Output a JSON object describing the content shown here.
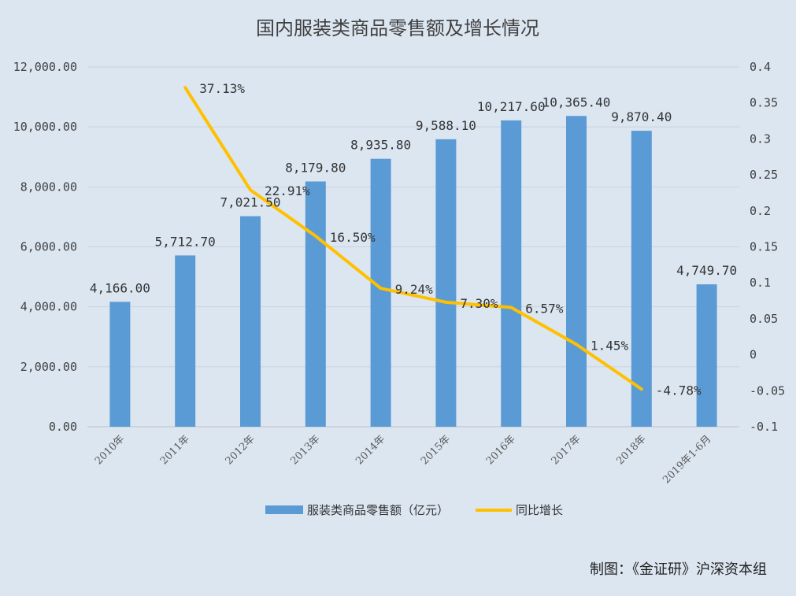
{
  "chart_data": {
    "type": "bar",
    "title": "国内服装类商品零售额及增长情况",
    "categories": [
      "2010年",
      "2011年",
      "2012年",
      "2013年",
      "2014年",
      "2015年",
      "2016年",
      "2017年",
      "2018年",
      "2019年1-6月"
    ],
    "series": [
      {
        "name": "服装类商品零售额（亿元）",
        "type": "bar",
        "axis": "left",
        "color": "#5b9bd5",
        "values": [
          4166.0,
          5712.7,
          7021.5,
          8179.8,
          8935.8,
          9588.1,
          10217.6,
          10365.4,
          9870.4,
          4749.7
        ],
        "labels": [
          "4,166.00",
          "5,712.70",
          "7,021.50",
          "8,179.80",
          "8,935.80",
          "9,588.10",
          "10,217.60",
          "10,365.40",
          "9,870.40",
          "4,749.70"
        ]
      },
      {
        "name": "同比增长",
        "type": "line",
        "axis": "right",
        "color": "#ffc000",
        "values": [
          null,
          0.3713,
          0.2291,
          0.165,
          0.0924,
          0.073,
          0.0657,
          0.0145,
          -0.0478,
          null
        ],
        "labels": [
          "",
          "37.13%",
          "22.91%",
          "16.50%",
          "9.24%",
          "7.30%",
          "6.57%",
          "1.45%",
          "-4.78%",
          ""
        ]
      }
    ],
    "y_left": {
      "range": [
        0,
        12000
      ],
      "ticks": [
        0,
        2000,
        4000,
        6000,
        8000,
        10000,
        12000
      ],
      "tick_labels": [
        "0.00",
        "2,000.00",
        "4,000.00",
        "6,000.00",
        "8,000.00",
        "10,000.00",
        "12,000.00"
      ]
    },
    "y_right": {
      "range": [
        -0.1,
        0.4
      ],
      "ticks": [
        -0.1,
        -0.05,
        0,
        0.05,
        0.1,
        0.15,
        0.2,
        0.25,
        0.3,
        0.35,
        0.4
      ],
      "tick_labels": [
        "-0.1",
        "-0.05",
        "0",
        "0.05",
        "0.1",
        "0.15",
        "0.2",
        "0.25",
        "0.3",
        "0.35",
        "0.4"
      ]
    },
    "grid": true,
    "legend": "bottom",
    "source": "制图：《金证研》沪深资本组"
  }
}
